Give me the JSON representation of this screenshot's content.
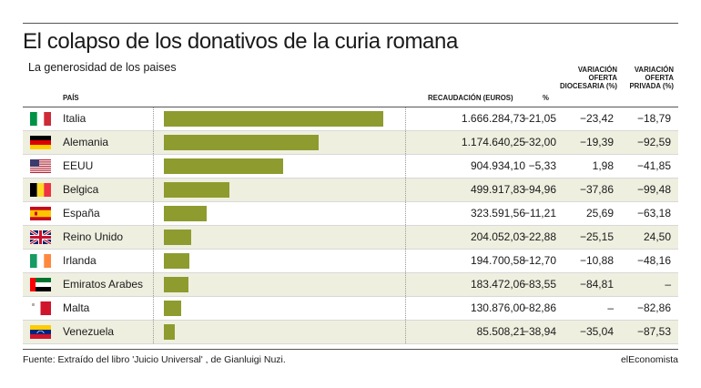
{
  "title": "El colapso de los donativos de la curia romana",
  "subtitle": "La generosidad de los paises",
  "headers": {
    "country": "PAÍS",
    "revenue": "RECAUDACIÓN (EUROS)",
    "pct": "%",
    "diocesan": "VARIACIÓN OFERTA DIOCESARIA (%)",
    "private": "VARIACIÓN OFERTA PRIVADA (%)"
  },
  "source": "Fuente: Extraído del libro 'Juicio Universal' , de Gianluigi Nuzi.",
  "brand": "elEconomista",
  "colors": {
    "bar": "#8e9b2f",
    "row_shade": "#efefe0"
  },
  "chart_data": {
    "type": "bar",
    "orientation": "horizontal",
    "title": "El colapso de los donativos de la curia romana",
    "subtitle": "La generosidad de los paises",
    "categories": [
      "Italia",
      "Alemania",
      "EEUU",
      "Belgica",
      "España",
      "Reino Unido",
      "Irlanda",
      "Emiratos Arabes",
      "Malta",
      "Venezuela"
    ],
    "series": [
      {
        "name": "RECAUDACIÓN (EUROS)",
        "values": [
          1666284.73,
          1174640.25,
          904934.1,
          499917.83,
          323591.56,
          204052.03,
          194700.58,
          183472.06,
          130876.0,
          85508.21
        ]
      }
    ],
    "xlim": [
      0,
      1666284.73
    ],
    "rows": [
      {
        "country": "Italia",
        "flag": "italy-flag",
        "revenue": "1.666.284,73",
        "pct": "−21,05",
        "diocesan": "−23,42",
        "private": "−18,79"
      },
      {
        "country": "Alemania",
        "flag": "germany-flag",
        "revenue": "1.174.640,25",
        "pct": "−32,00",
        "diocesan": "−19,39",
        "private": "−92,59"
      },
      {
        "country": "EEUU",
        "flag": "usa-flag",
        "revenue": "904.934,10",
        "pct": "−5,33",
        "diocesan": "1,98",
        "private": "−41,85"
      },
      {
        "country": "Belgica",
        "flag": "belgium-flag",
        "revenue": "499.917,83",
        "pct": "−94,96",
        "diocesan": "−37,86",
        "private": "−99,48"
      },
      {
        "country": "España",
        "flag": "spain-flag",
        "revenue": "323.591,56",
        "pct": "−11,21",
        "diocesan": "25,69",
        "private": "−63,18"
      },
      {
        "country": "Reino Unido",
        "flag": "uk-flag",
        "revenue": "204.052,03",
        "pct": "−22,88",
        "diocesan": "−25,15",
        "private": "24,50"
      },
      {
        "country": "Irlanda",
        "flag": "ireland-flag",
        "revenue": "194.700,58",
        "pct": "−12,70",
        "diocesan": "−10,88",
        "private": "−48,16"
      },
      {
        "country": "Emiratos Arabes",
        "flag": "uae-flag",
        "revenue": "183.472,06",
        "pct": "−83,55",
        "diocesan": "−84,81",
        "private": "–"
      },
      {
        "country": "Malta",
        "flag": "malta-flag",
        "revenue": "130.876,00",
        "pct": "−82,86",
        "diocesan": "–",
        "private": "−82,86"
      },
      {
        "country": "Venezuela",
        "flag": "venezuela-flag",
        "revenue": "85.508,21",
        "pct": "−38,94",
        "diocesan": "−35,04",
        "private": "−87,53"
      }
    ]
  }
}
